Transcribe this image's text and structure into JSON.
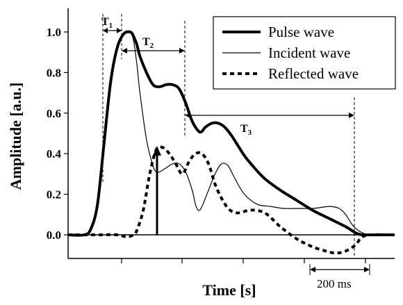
{
  "chart_data": {
    "type": "line",
    "title": "",
    "xlabel": "Time [s]",
    "ylabel": "Amplitude [a.u.]",
    "xlim": [
      0,
      1.0
    ],
    "ylim": [
      -0.18,
      1.12
    ],
    "y_ticks": [
      0.0,
      0.2,
      0.4,
      0.6,
      0.8,
      1.0
    ],
    "y_tick_labels": [
      "0.0",
      "0.2",
      "0.4",
      "0.6",
      "0.8",
      "1.0"
    ],
    "x_tick_count": 4,
    "grid": false,
    "legend": {
      "position": "top-right"
    },
    "series": [
      {
        "name": "Pulse wave",
        "style": "thick-solid",
        "color": "#000000",
        "x": [
          0.0,
          0.05,
          0.07,
          0.09,
          0.11,
          0.13,
          0.15,
          0.17,
          0.19,
          0.2,
          0.21,
          0.22,
          0.24,
          0.26,
          0.28,
          0.3,
          0.32,
          0.34,
          0.36,
          0.38,
          0.4,
          0.41,
          0.42,
          0.44,
          0.46,
          0.48,
          0.5,
          0.52,
          0.54,
          0.56,
          0.6,
          0.65,
          0.7,
          0.75,
          0.8,
          0.85,
          0.88,
          0.9,
          0.92,
          0.95,
          1.0
        ],
        "y": [
          0.0,
          0.0,
          0.03,
          0.15,
          0.45,
          0.75,
          0.92,
          0.99,
          1.0,
          0.98,
          0.94,
          0.88,
          0.8,
          0.74,
          0.73,
          0.74,
          0.74,
          0.72,
          0.65,
          0.56,
          0.51,
          0.51,
          0.53,
          0.55,
          0.55,
          0.53,
          0.49,
          0.44,
          0.39,
          0.35,
          0.28,
          0.22,
          0.17,
          0.12,
          0.08,
          0.04,
          0.01,
          0.0,
          0.0,
          0.0,
          0.0
        ]
      },
      {
        "name": "Incident wave",
        "style": "thin-solid",
        "color": "#000000",
        "x": [
          0.0,
          0.05,
          0.07,
          0.09,
          0.11,
          0.13,
          0.15,
          0.17,
          0.19,
          0.2,
          0.21,
          0.22,
          0.24,
          0.26,
          0.27,
          0.28,
          0.3,
          0.32,
          0.34,
          0.36,
          0.38,
          0.39,
          0.4,
          0.41,
          0.43,
          0.45,
          0.47,
          0.49,
          0.51,
          0.54,
          0.58,
          0.62,
          0.66,
          0.7,
          0.75,
          0.8,
          0.83,
          0.85,
          0.87,
          0.89,
          0.92,
          0.95,
          1.0
        ],
        "y": [
          0.0,
          0.0,
          0.03,
          0.15,
          0.45,
          0.75,
          0.92,
          0.99,
          1.0,
          0.96,
          0.85,
          0.7,
          0.47,
          0.34,
          0.31,
          0.31,
          0.33,
          0.35,
          0.35,
          0.31,
          0.22,
          0.15,
          0.12,
          0.14,
          0.22,
          0.3,
          0.35,
          0.34,
          0.28,
          0.2,
          0.15,
          0.14,
          0.13,
          0.13,
          0.13,
          0.14,
          0.13,
          0.1,
          0.05,
          0.02,
          0.0,
          0.0,
          0.0
        ]
      },
      {
        "name": "Reflected wave",
        "style": "thick-dashed",
        "color": "#000000",
        "x": [
          0.0,
          0.1,
          0.15,
          0.18,
          0.2,
          0.21,
          0.23,
          0.25,
          0.27,
          0.29,
          0.31,
          0.33,
          0.35,
          0.37,
          0.39,
          0.41,
          0.43,
          0.45,
          0.47,
          0.49,
          0.51,
          0.53,
          0.55,
          0.58,
          0.61,
          0.65,
          0.7,
          0.75,
          0.79,
          0.82,
          0.85,
          0.88,
          0.9,
          0.93,
          0.97,
          1.0
        ],
        "y": [
          0.0,
          0.0,
          0.0,
          -0.01,
          0.0,
          0.02,
          0.12,
          0.3,
          0.42,
          0.43,
          0.4,
          0.35,
          0.3,
          0.36,
          0.4,
          0.4,
          0.35,
          0.25,
          0.18,
          0.13,
          0.11,
          0.11,
          0.12,
          0.12,
          0.1,
          0.04,
          -0.02,
          -0.06,
          -0.08,
          -0.09,
          -0.08,
          -0.05,
          -0.01,
          0.0,
          0.0,
          0.0
        ]
      }
    ],
    "annotations": {
      "t1_label": "T",
      "t1_sub": "1",
      "t2_label": "T",
      "t2_sub": "2",
      "t3_label": "T",
      "t3_sub": "3",
      "scale_bar_label": "200 ms",
      "peak_arrow_x": 0.29,
      "peak_arrow_y": 0.43
    }
  }
}
